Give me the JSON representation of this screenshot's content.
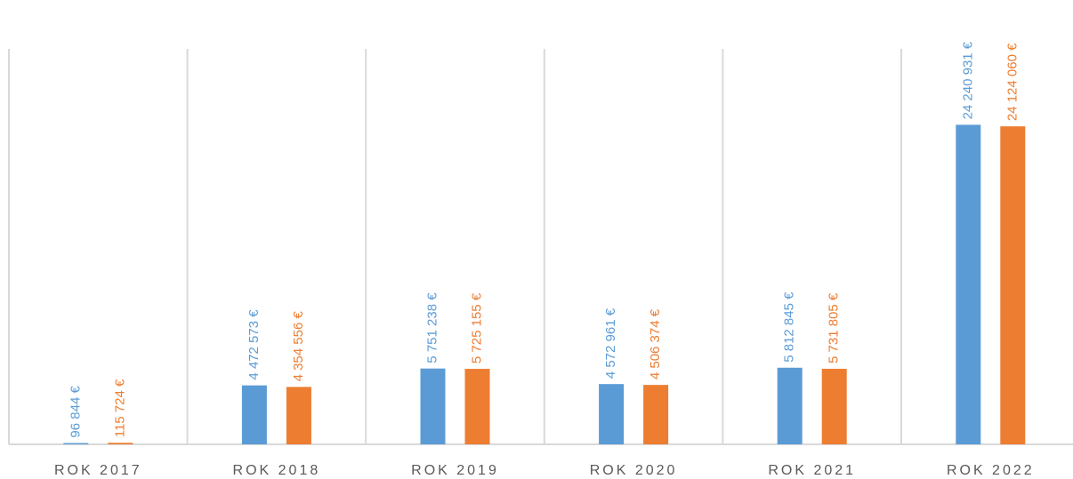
{
  "chart_data": {
    "type": "bar",
    "categories": [
      "ROK 2017",
      "ROK 2018",
      "ROK 2019",
      "ROK 2020",
      "ROK 2021",
      "ROK 2022"
    ],
    "series": [
      {
        "color": "#5b9bd5",
        "values": [
          96844,
          4472573,
          5751238,
          4572961,
          5812845,
          24240931
        ],
        "value_labels": [
          "96 844 €",
          "4 472 573 €",
          "5 751 238 €",
          "4 572 961 €",
          "5 812 845 €",
          "24 240 931 €"
        ]
      },
      {
        "color": "#ed7d31",
        "values": [
          115724,
          4354556,
          5725155,
          4506374,
          5731805,
          24124060
        ],
        "value_labels": [
          "115 724 €",
          "4 354 556 €",
          "5 725 155 €",
          "4 506 374 €",
          "5 731 805 €",
          "24 124 060 €"
        ]
      }
    ],
    "ylim": [
      0,
      30000000
    ]
  }
}
